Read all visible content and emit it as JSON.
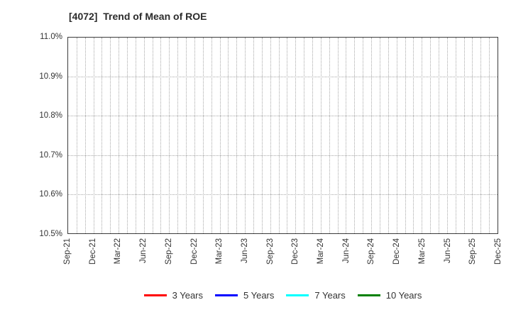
{
  "title": "[4072]  Trend of Mean of ROE",
  "chart_data": {
    "type": "line",
    "title": "[4072]  Trend of Mean of ROE",
    "x_tick_labels": [
      "Sep-21",
      "Dec-21",
      "Mar-22",
      "Jun-22",
      "Sep-22",
      "Dec-22",
      "Mar-23",
      "Jun-23",
      "Sep-23",
      "Dec-23",
      "Mar-24",
      "Jun-24",
      "Sep-24",
      "Dec-24",
      "Mar-25",
      "Jun-25",
      "Sep-25",
      "Dec-25"
    ],
    "months_per_labeled_tick": 3,
    "total_month_intervals": 51,
    "y_tick_labels": [
      "11.0%",
      "10.9%",
      "10.8%",
      "10.7%",
      "10.6%",
      "10.5%"
    ],
    "ylim": [
      10.5,
      11.0
    ],
    "y_tick_step": 0.1,
    "y_unit": "%",
    "grid": true,
    "grid_style": "dotted",
    "legend_position": "bottom",
    "series": [
      {
        "name": "3 Years",
        "color": "#ff0000",
        "values": []
      },
      {
        "name": "5 Years",
        "color": "#0000ff",
        "values": []
      },
      {
        "name": "7 Years",
        "color": "#00ffff",
        "values": []
      },
      {
        "name": "10 Years",
        "color": "#008000",
        "values": []
      }
    ]
  },
  "colors": {
    "background": "#ffffff",
    "plot_border": "#3c3c3c",
    "gridline": "#a8a8a8",
    "text": "#333333"
  }
}
